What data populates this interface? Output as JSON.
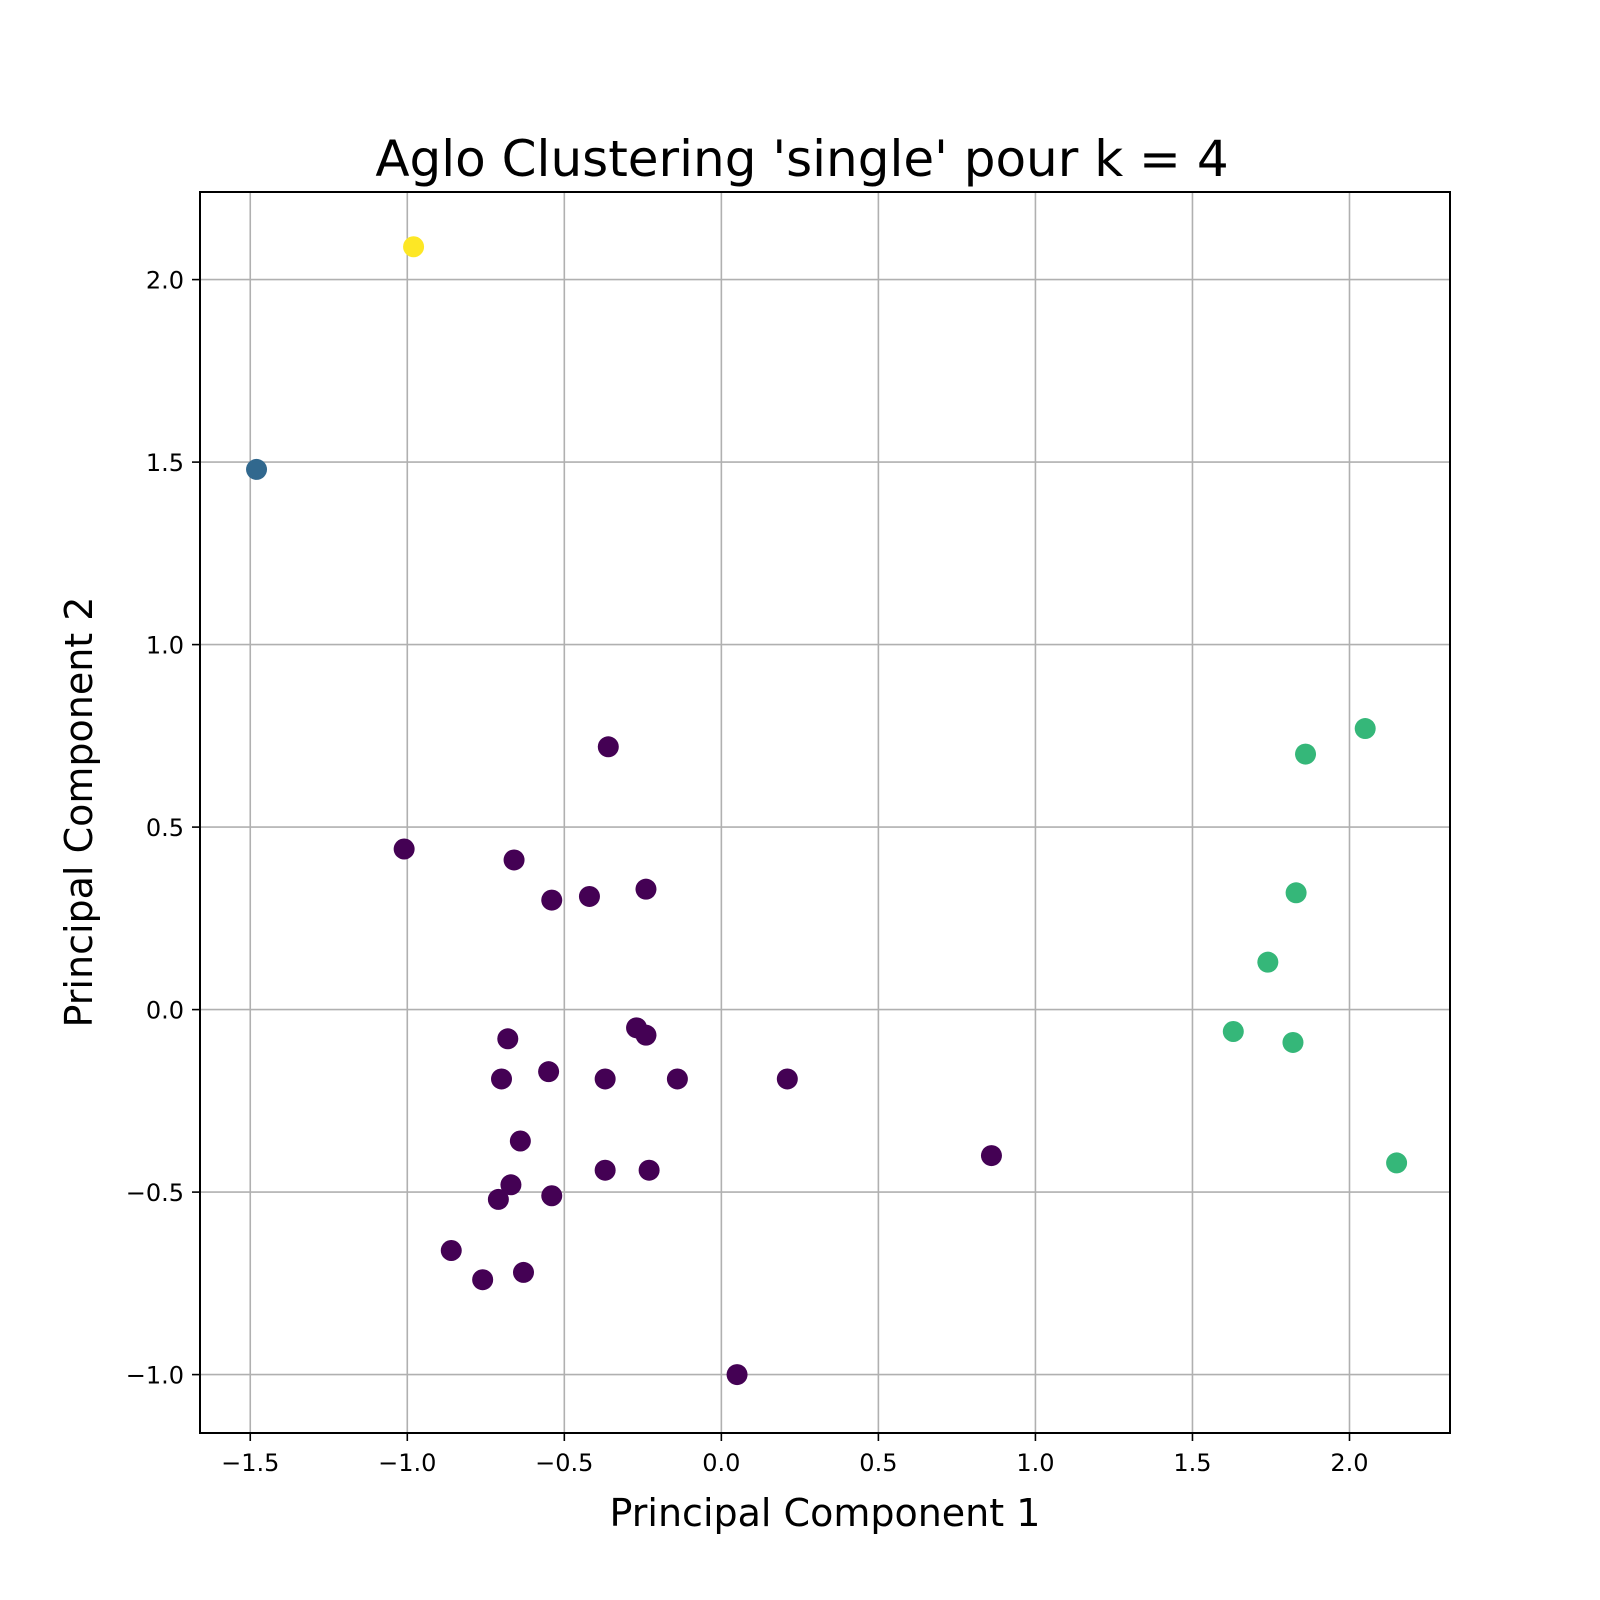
{
  "chart_data": {
    "type": "scatter",
    "title": "Aglo Clustering 'single' pour k = 4",
    "xlabel": "Principal Component 1",
    "ylabel": "Principal Component 2",
    "xlim": [
      -1.66,
      2.32
    ],
    "ylim": [
      -1.16,
      2.24
    ],
    "xticks": [
      -1.5,
      -1.0,
      -0.5,
      0.0,
      0.5,
      1.0,
      1.5,
      2.0
    ],
    "yticks": [
      -1.0,
      -0.5,
      0.0,
      0.5,
      1.0,
      1.5,
      2.0
    ],
    "xtick_labels": [
      "−1.5",
      "−1.0",
      "−0.5",
      "0.0",
      "0.5",
      "1.0",
      "1.5",
      "2.0"
    ],
    "ytick_labels": [
      "−1.0",
      "−0.5",
      "0.0",
      "0.5",
      "1.0",
      "1.5",
      "2.0"
    ],
    "grid": true,
    "cluster_colors": [
      "#440154",
      "#31688e",
      "#35b779",
      "#fde725"
    ],
    "points": [
      {
        "x": -0.98,
        "y": 2.09,
        "cluster": 3
      },
      {
        "x": -1.48,
        "y": 1.48,
        "cluster": 1
      },
      {
        "x": 2.05,
        "y": 0.77,
        "cluster": 2
      },
      {
        "x": 1.86,
        "y": 0.7,
        "cluster": 2
      },
      {
        "x": 1.83,
        "y": 0.32,
        "cluster": 2
      },
      {
        "x": 1.74,
        "y": 0.13,
        "cluster": 2
      },
      {
        "x": 1.63,
        "y": -0.06,
        "cluster": 2
      },
      {
        "x": 1.82,
        "y": -0.09,
        "cluster": 2
      },
      {
        "x": 2.15,
        "y": -0.42,
        "cluster": 2
      },
      {
        "x": -0.36,
        "y": 0.72,
        "cluster": 0
      },
      {
        "x": -1.01,
        "y": 0.44,
        "cluster": 0
      },
      {
        "x": -0.66,
        "y": 0.41,
        "cluster": 0
      },
      {
        "x": -0.54,
        "y": 0.3,
        "cluster": 0
      },
      {
        "x": -0.42,
        "y": 0.31,
        "cluster": 0
      },
      {
        "x": -0.24,
        "y": 0.33,
        "cluster": 0
      },
      {
        "x": -0.27,
        "y": -0.05,
        "cluster": 0
      },
      {
        "x": -0.24,
        "y": -0.07,
        "cluster": 0
      },
      {
        "x": -0.68,
        "y": -0.08,
        "cluster": 0
      },
      {
        "x": -0.7,
        "y": -0.19,
        "cluster": 0
      },
      {
        "x": -0.55,
        "y": -0.17,
        "cluster": 0
      },
      {
        "x": -0.37,
        "y": -0.19,
        "cluster": 0
      },
      {
        "x": -0.14,
        "y": -0.19,
        "cluster": 0
      },
      {
        "x": 0.21,
        "y": -0.19,
        "cluster": 0
      },
      {
        "x": -0.64,
        "y": -0.36,
        "cluster": 0
      },
      {
        "x": 0.86,
        "y": -0.4,
        "cluster": 0
      },
      {
        "x": -0.37,
        "y": -0.44,
        "cluster": 0
      },
      {
        "x": -0.23,
        "y": -0.44,
        "cluster": 0
      },
      {
        "x": -0.67,
        "y": -0.48,
        "cluster": 0
      },
      {
        "x": -0.71,
        "y": -0.52,
        "cluster": 0
      },
      {
        "x": -0.54,
        "y": -0.51,
        "cluster": 0
      },
      {
        "x": -0.86,
        "y": -0.66,
        "cluster": 0
      },
      {
        "x": -0.76,
        "y": -0.74,
        "cluster": 0
      },
      {
        "x": -0.63,
        "y": -0.72,
        "cluster": 0
      },
      {
        "x": 0.05,
        "y": -1.0,
        "cluster": 0
      }
    ]
  }
}
